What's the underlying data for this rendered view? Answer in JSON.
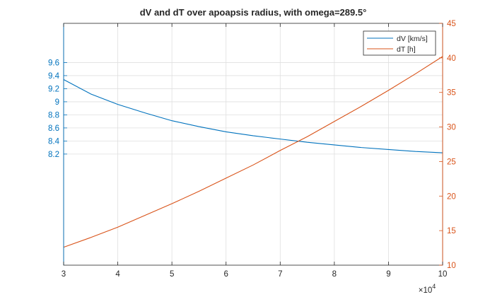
{
  "chart_data": {
    "type": "line",
    "title": "dV and dT over apoapsis radius, with omega=289.5°",
    "x_ticks": [
      "3",
      "4",
      "5",
      "6",
      "7",
      "8",
      "9",
      "10"
    ],
    "x_exponent_label": "×10",
    "x_exponent_power": "4",
    "xlim": [
      30000,
      100000
    ],
    "left_axis": {
      "ylim": [
        6.5,
        10.2
      ],
      "tick_values": [
        8.2,
        8.4,
        8.6,
        8.8,
        9,
        9.2,
        9.4,
        9.6
      ],
      "tick_labels": [
        "8.2",
        "8.4",
        "8.6",
        "8.8",
        "9",
        "9.2",
        "9.4",
        "9.6"
      ],
      "color": "#0072BD"
    },
    "right_axis": {
      "ylim": [
        10,
        45
      ],
      "tick_values": [
        10,
        15,
        20,
        25,
        30,
        35,
        40,
        45
      ],
      "tick_labels": [
        "10",
        "15",
        "20",
        "25",
        "30",
        "35",
        "40",
        "45"
      ],
      "color": "#D95319"
    },
    "grid": true,
    "legend_position": "top-right",
    "series": [
      {
        "name": "dV [km/s]",
        "axis": "left",
        "color": "#0072BD",
        "x": [
          30000,
          35000,
          40000,
          45000,
          50000,
          55000,
          60000,
          65000,
          70000,
          75000,
          80000,
          85000,
          90000,
          95000,
          100000
        ],
        "values": [
          9.34,
          9.12,
          8.96,
          8.83,
          8.71,
          8.62,
          8.54,
          8.48,
          8.43,
          8.38,
          8.34,
          8.3,
          8.27,
          8.24,
          8.22
        ]
      },
      {
        "name": "dT [h]",
        "axis": "right",
        "color": "#D95319",
        "x": [
          30000,
          35000,
          40000,
          45000,
          50000,
          55000,
          60000,
          65000,
          70000,
          75000,
          80000,
          85000,
          90000,
          95000,
          100000
        ],
        "values": [
          12.6,
          14.0,
          15.5,
          17.2,
          18.9,
          20.7,
          22.6,
          24.5,
          26.6,
          28.6,
          30.8,
          33.0,
          35.3,
          37.7,
          40.2
        ]
      }
    ]
  }
}
